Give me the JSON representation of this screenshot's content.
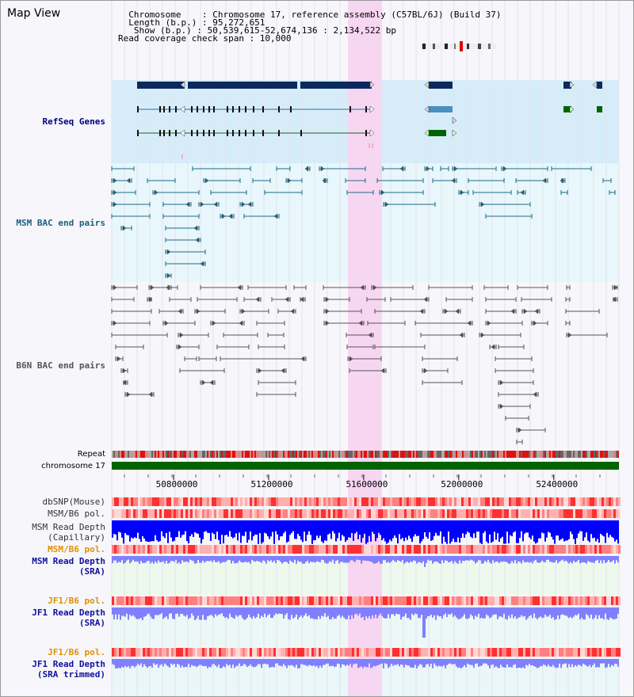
{
  "header": {
    "title": "Map View",
    "lines": [
      "  Chromosome    : Chromosome 17, reference assembly (C57BL/6J) (Build 37)",
      "  Length (b.p.) : 95,272,651",
      "   Show (b.p.) : 50,539,615-52,674,136 : 2,134,522 bp",
      "Read coverage check span : 10,000"
    ]
  },
  "tracks": {
    "refseq": {
      "label": "RefSeq Genes",
      "color": "#000080"
    },
    "msm_bac": {
      "label": "MSM BAC end pairs",
      "color": "#1a5f80"
    },
    "b6n_bac": {
      "label": "B6N BAC end pairs",
      "color": "#555555"
    },
    "repeat": {
      "label": "Repeat",
      "color": "#000000"
    },
    "chromosome": {
      "label": "chromosome 17",
      "color": "#000000"
    },
    "dbsnp": {
      "label": "dbSNP(Mouse)",
      "color": "#333333"
    },
    "msm_b6_pol_1": {
      "label": "MSM/B6 pol.",
      "color": "#333333"
    },
    "msm_depth_cap": {
      "label": "MSM Read Depth\n(Capillary)",
      "color": "#333333"
    },
    "msm_b6_pol_2": {
      "label": "MSM/B6 pol.",
      "color": "#e09000"
    },
    "msm_depth_sra": {
      "label": "MSM Read Depth\n(SRA)",
      "color": "#1010a0"
    },
    "jf1_b6_pol_1": {
      "label": "JF1/B6 pol.",
      "color": "#e09000"
    },
    "jf1_depth_sra": {
      "label": "JF1 Read Depth\n(SRA)",
      "color": "#1010a0"
    },
    "jf1_b6_pol_2": {
      "label": "JF1/B6 pol.",
      "color": "#e09000"
    },
    "jf1_depth_trim": {
      "label": "JF1 Read Depth\n(SRA trimmed)",
      "color": "#1010a0"
    }
  },
  "axis": {
    "ticks": [
      {
        "value": 50800000,
        "label": "50800000"
      },
      {
        "value": 51200000,
        "label": "51200000"
      },
      {
        "value": 51600000,
        "label": "51600000"
      },
      {
        "value": 52000000,
        "label": "52000000"
      },
      {
        "value": 52400000,
        "label": "52400000"
      }
    ]
  },
  "colors": {
    "highlight": "#f7d6f2",
    "refseq_bg": "#d6edf9",
    "bac_bg": "#e8f7fb",
    "dark_gene": "#0a2a5e",
    "mid_gene": "#4a90bf",
    "green_gene": "#006400",
    "chromosome_bar": "#006400",
    "depth_dark": "#0000ff",
    "depth_light": "#8080ff",
    "pol_red": "#ff3030"
  }
}
